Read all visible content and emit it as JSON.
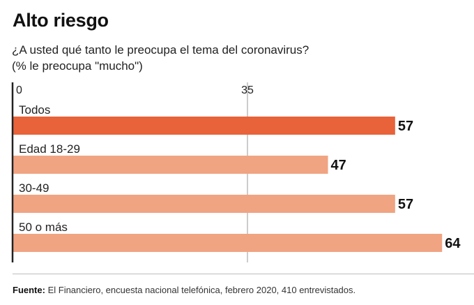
{
  "title": "Alto riesgo",
  "subtitle_line1": "¿A usted qué tanto le preocupa el tema del coronavirus?",
  "subtitle_line2": "(% le preocupa \"mucho\")",
  "chart_data": {
    "type": "bar",
    "orientation": "horizontal",
    "categories": [
      "Todos",
      "Edad 18-29",
      "30-49",
      "50 o más"
    ],
    "values": [
      57,
      47,
      57,
      64
    ],
    "x_ticks": [
      0,
      35
    ],
    "xlim": [
      0,
      70
    ],
    "highlight_index": 0,
    "colors": {
      "highlight": "#e8623a",
      "bar": "#f0a482",
      "axis": "#222222",
      "gridline": "#9a9a9a"
    }
  },
  "source_label": "Fuente:",
  "source_text": "El Financiero, encuesta nacional telefónica, febrero 2020, 410 entrevistados."
}
